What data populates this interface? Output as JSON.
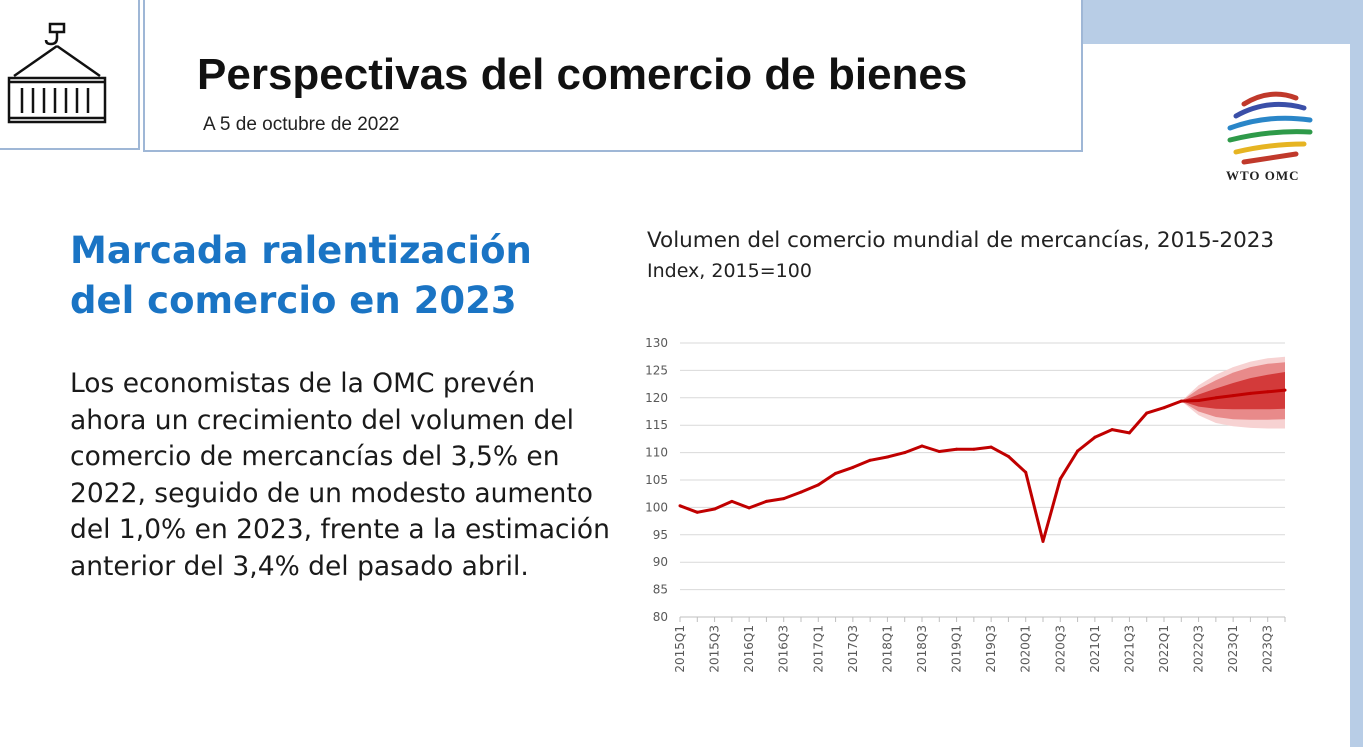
{
  "header": {
    "title": "Perspectivas del comercio de bienes",
    "date": "A  5 de octubre de 2022",
    "logo_text": "WTO OMC",
    "icon": "shipping-container-icon"
  },
  "main": {
    "heading_line1": "Marcada ralentización",
    "heading_line2": "del comercio en 2023",
    "body": "Los economistas de la OMC prevén ahora un crecimiento del volumen del comercio de mercancías del 3,5% en 2022, seguido de un modesto aumento del 1,0% en 2023, frente a la estimación anterior del 3,4% del pasado abril."
  },
  "colors": {
    "heading": "#1a74c4",
    "line": "#c00000",
    "band_inner": "#d33a3a",
    "band_mid": "#e88a8a",
    "band_outer": "#f7d2d2",
    "border": "#9fb7d6",
    "accent_bar": "#b8cde6"
  },
  "chart_data": {
    "type": "line",
    "title": "Volumen del comercio mundial de mercancías, 2015-2023",
    "subtitle": "Index, 2015=100",
    "ylim": [
      80,
      130
    ],
    "yticks": [
      80,
      85,
      90,
      95,
      100,
      105,
      110,
      115,
      120,
      125,
      130
    ],
    "grid": true,
    "x": [
      "2015Q1",
      "2015Q2",
      "2015Q3",
      "2015Q4",
      "2016Q1",
      "2016Q2",
      "2016Q3",
      "2016Q4",
      "2017Q1",
      "2017Q2",
      "2017Q3",
      "2017Q4",
      "2018Q1",
      "2018Q2",
      "2018Q3",
      "2018Q4",
      "2019Q1",
      "2019Q2",
      "2019Q3",
      "2019Q4",
      "2020Q1",
      "2020Q2",
      "2020Q3",
      "2020Q4",
      "2021Q1",
      "2021Q2",
      "2021Q3",
      "2021Q4",
      "2022Q1",
      "2022Q2",
      "2022Q3",
      "2022Q4",
      "2023Q1",
      "2023Q2",
      "2023Q3",
      "2023Q4"
    ],
    "xtick_labels": [
      "2015Q1",
      "2015Q3",
      "2016Q1",
      "2016Q3",
      "2017Q1",
      "2017Q3",
      "2018Q1",
      "2018Q3",
      "2019Q1",
      "2019Q3",
      "2020Q1",
      "2020Q3",
      "2021Q1",
      "2021Q3",
      "2022Q1",
      "2022Q3",
      "2023Q1",
      "2023Q3"
    ],
    "series": [
      {
        "values": [
          100.3,
          99.1,
          99.7,
          101.1,
          99.9,
          101.1,
          101.6,
          102.8,
          104.1,
          106.2,
          107.3,
          108.6,
          109.2,
          110.0,
          111.2,
          110.2,
          110.6,
          110.6,
          111.0,
          109.3,
          106.4,
          93.8,
          105.2,
          110.3,
          112.8,
          114.2,
          113.6,
          117.2,
          118.2,
          119.4,
          119.5,
          120.0,
          120.4,
          120.8,
          121.1,
          121.4
        ]
      }
    ],
    "forecast": {
      "start_index": 29,
      "inner": {
        "lower": [
          119.4,
          118.4,
          118.0,
          117.9,
          117.9,
          117.9,
          118.0
        ],
        "upper": [
          119.4,
          120.6,
          121.7,
          122.7,
          123.6,
          124.2,
          124.7
        ]
      },
      "mid": {
        "lower": [
          119.4,
          117.5,
          116.5,
          116.1,
          116.0,
          116.0,
          116.1
        ],
        "upper": [
          119.4,
          121.6,
          123.2,
          124.6,
          125.6,
          126.2,
          126.5
        ]
      },
      "outer": {
        "lower": [
          119.4,
          116.8,
          115.4,
          114.8,
          114.5,
          114.4,
          114.4
        ],
        "upper": [
          119.4,
          122.3,
          124.2,
          125.6,
          126.6,
          127.2,
          127.5
        ]
      }
    }
  }
}
